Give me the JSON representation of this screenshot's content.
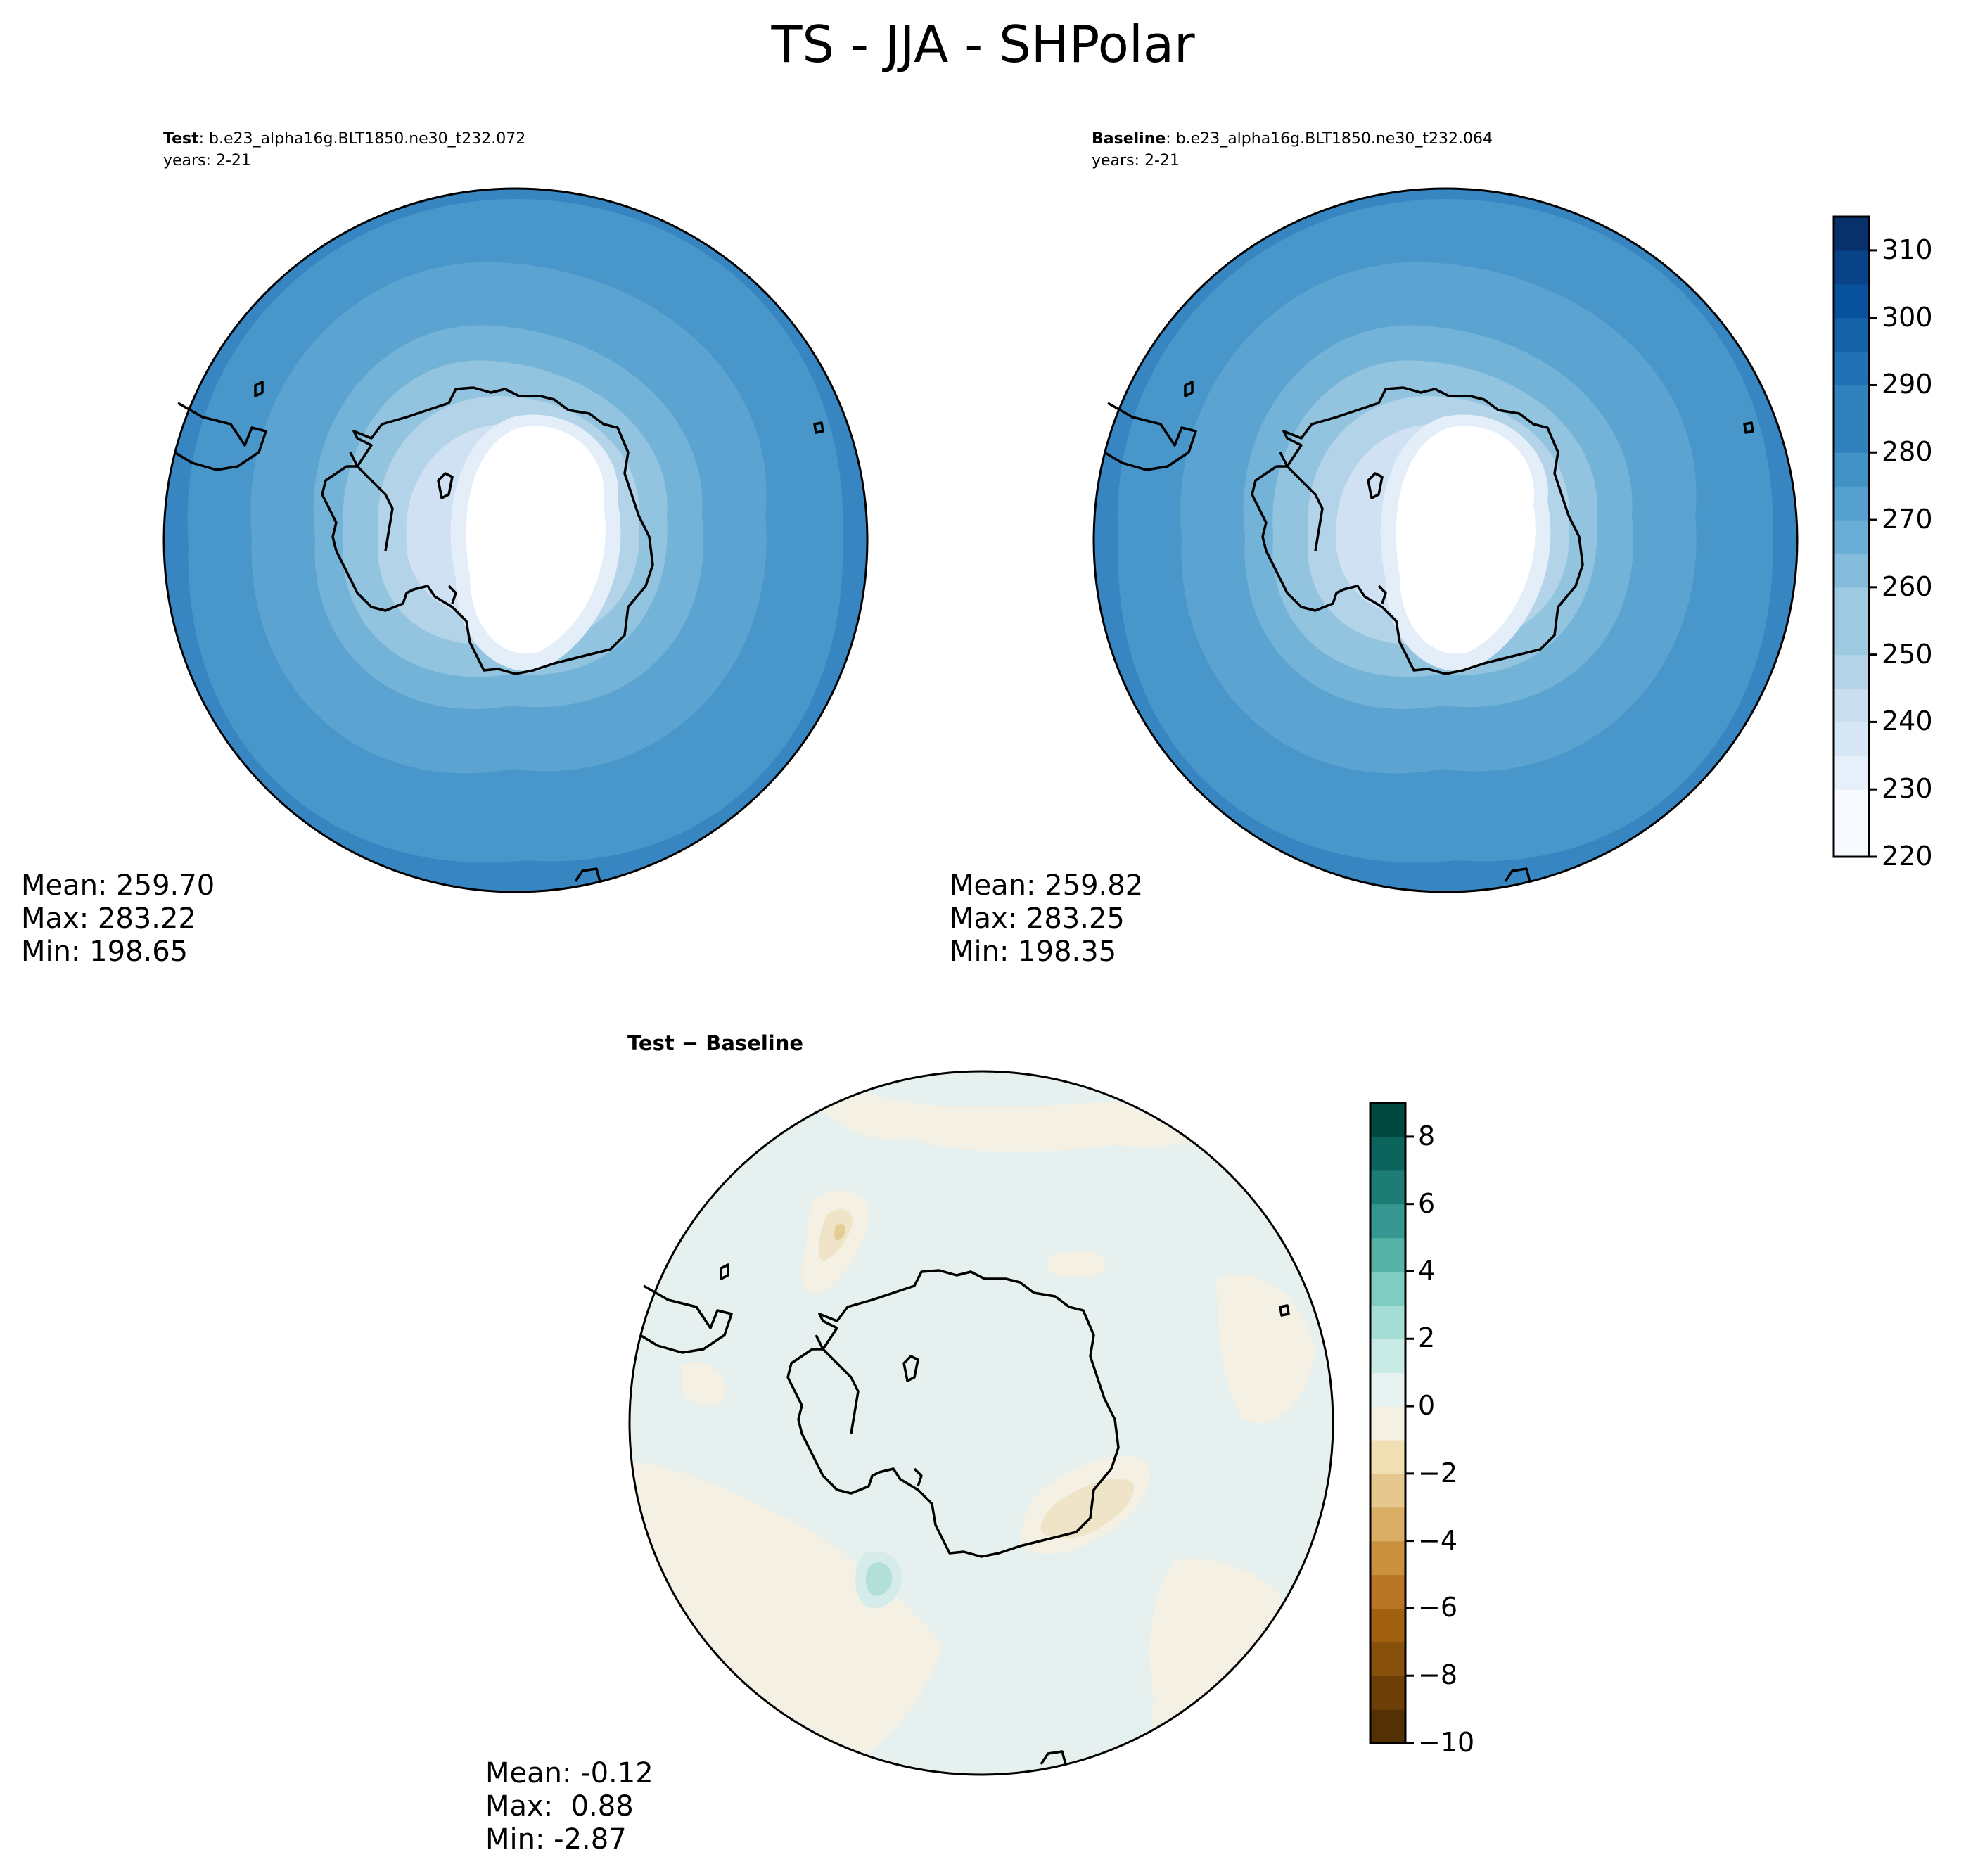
{
  "figure": {
    "title": "TS - JJA - SHPolar"
  },
  "panels": [
    {
      "id": "test",
      "label": "Test",
      "case": ": b.e23_alpha16g.BLT1850.ne30_t232.072",
      "years": "years: 2-21",
      "stats": {
        "mean": "Mean: 259.70",
        "max": "Max: 283.22",
        "min": "Min: 198.65"
      }
    },
    {
      "id": "baseline",
      "label": "Baseline",
      "case": ": b.e23_alpha16g.BLT1850.ne30_t232.064",
      "years": "years: 2-21",
      "stats": {
        "mean": "Mean: 259.82",
        "max": "Max: 283.25",
        "min": "Min: 198.35"
      }
    },
    {
      "id": "diff",
      "label": "Test − Baseline",
      "stats": {
        "mean": "Mean: -0.12",
        "max": "Max:  0.88",
        "min": "Min: -2.87"
      }
    }
  ],
  "colorbars": {
    "main": {
      "range": [
        220,
        315
      ],
      "step": 5,
      "ticks": [
        "220",
        "230",
        "240",
        "250",
        "260",
        "270",
        "280",
        "290",
        "300",
        "310"
      ],
      "colormap": "Blues"
    },
    "diff": {
      "range": [
        -10,
        9
      ],
      "step": 1,
      "ticks": [
        "−10",
        "−8",
        "−6",
        "−4",
        "−2",
        "0",
        "2",
        "4",
        "6",
        "8"
      ],
      "colormap": "BrBG"
    }
  }
}
